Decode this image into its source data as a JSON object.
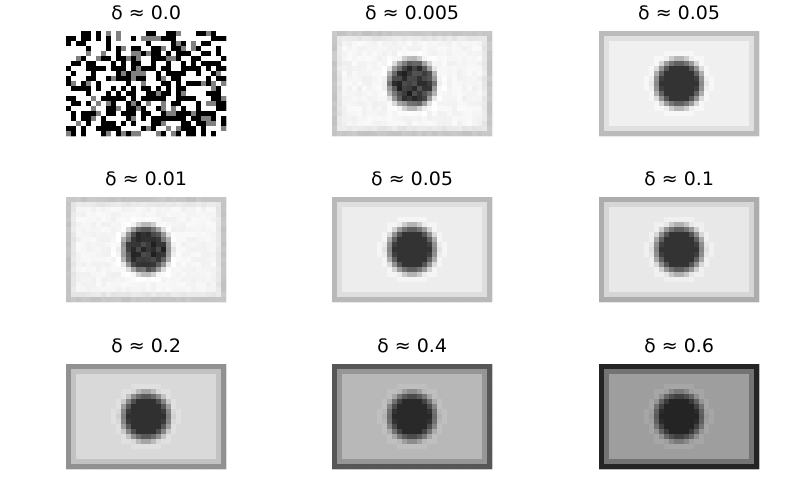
{
  "chart_data": {
    "type": "heatmap",
    "layout": {
      "rows": 3,
      "cols": 3
    },
    "axes_visible": false,
    "colormap": "gray",
    "panels": [
      {
        "title": "δ ≈ 0.0",
        "delta": 0.0,
        "background": 0.0,
        "disk": 0.0,
        "noise": 1.0
      },
      {
        "title": "δ ≈ 0.005",
        "delta": 0.005,
        "background": 0.96,
        "disk": 0.22,
        "noise": 0.35
      },
      {
        "title": "δ ≈ 0.05",
        "delta": 0.05,
        "background": 0.94,
        "disk": 0.2,
        "noise": 0.0
      },
      {
        "title": "δ ≈ 0.01",
        "delta": 0.01,
        "background": 0.96,
        "disk": 0.21,
        "noise": 0.3
      },
      {
        "title": "δ ≈ 0.05",
        "delta": 0.05,
        "background": 0.93,
        "disk": 0.2,
        "noise": 0.0
      },
      {
        "title": "δ ≈ 0.1",
        "delta": 0.1,
        "background": 0.91,
        "disk": 0.2,
        "noise": 0.0
      },
      {
        "title": "δ ≈ 0.2",
        "delta": 0.2,
        "background": 0.85,
        "disk": 0.19,
        "noise": 0.0
      },
      {
        "title": "δ ≈ 0.4",
        "delta": 0.4,
        "background": 0.72,
        "disk": 0.16,
        "noise": 0.0
      },
      {
        "title": "δ ≈ 0.6",
        "delta": 0.6,
        "background": 0.62,
        "disk": 0.14,
        "noise": 0.0
      }
    ]
  }
}
